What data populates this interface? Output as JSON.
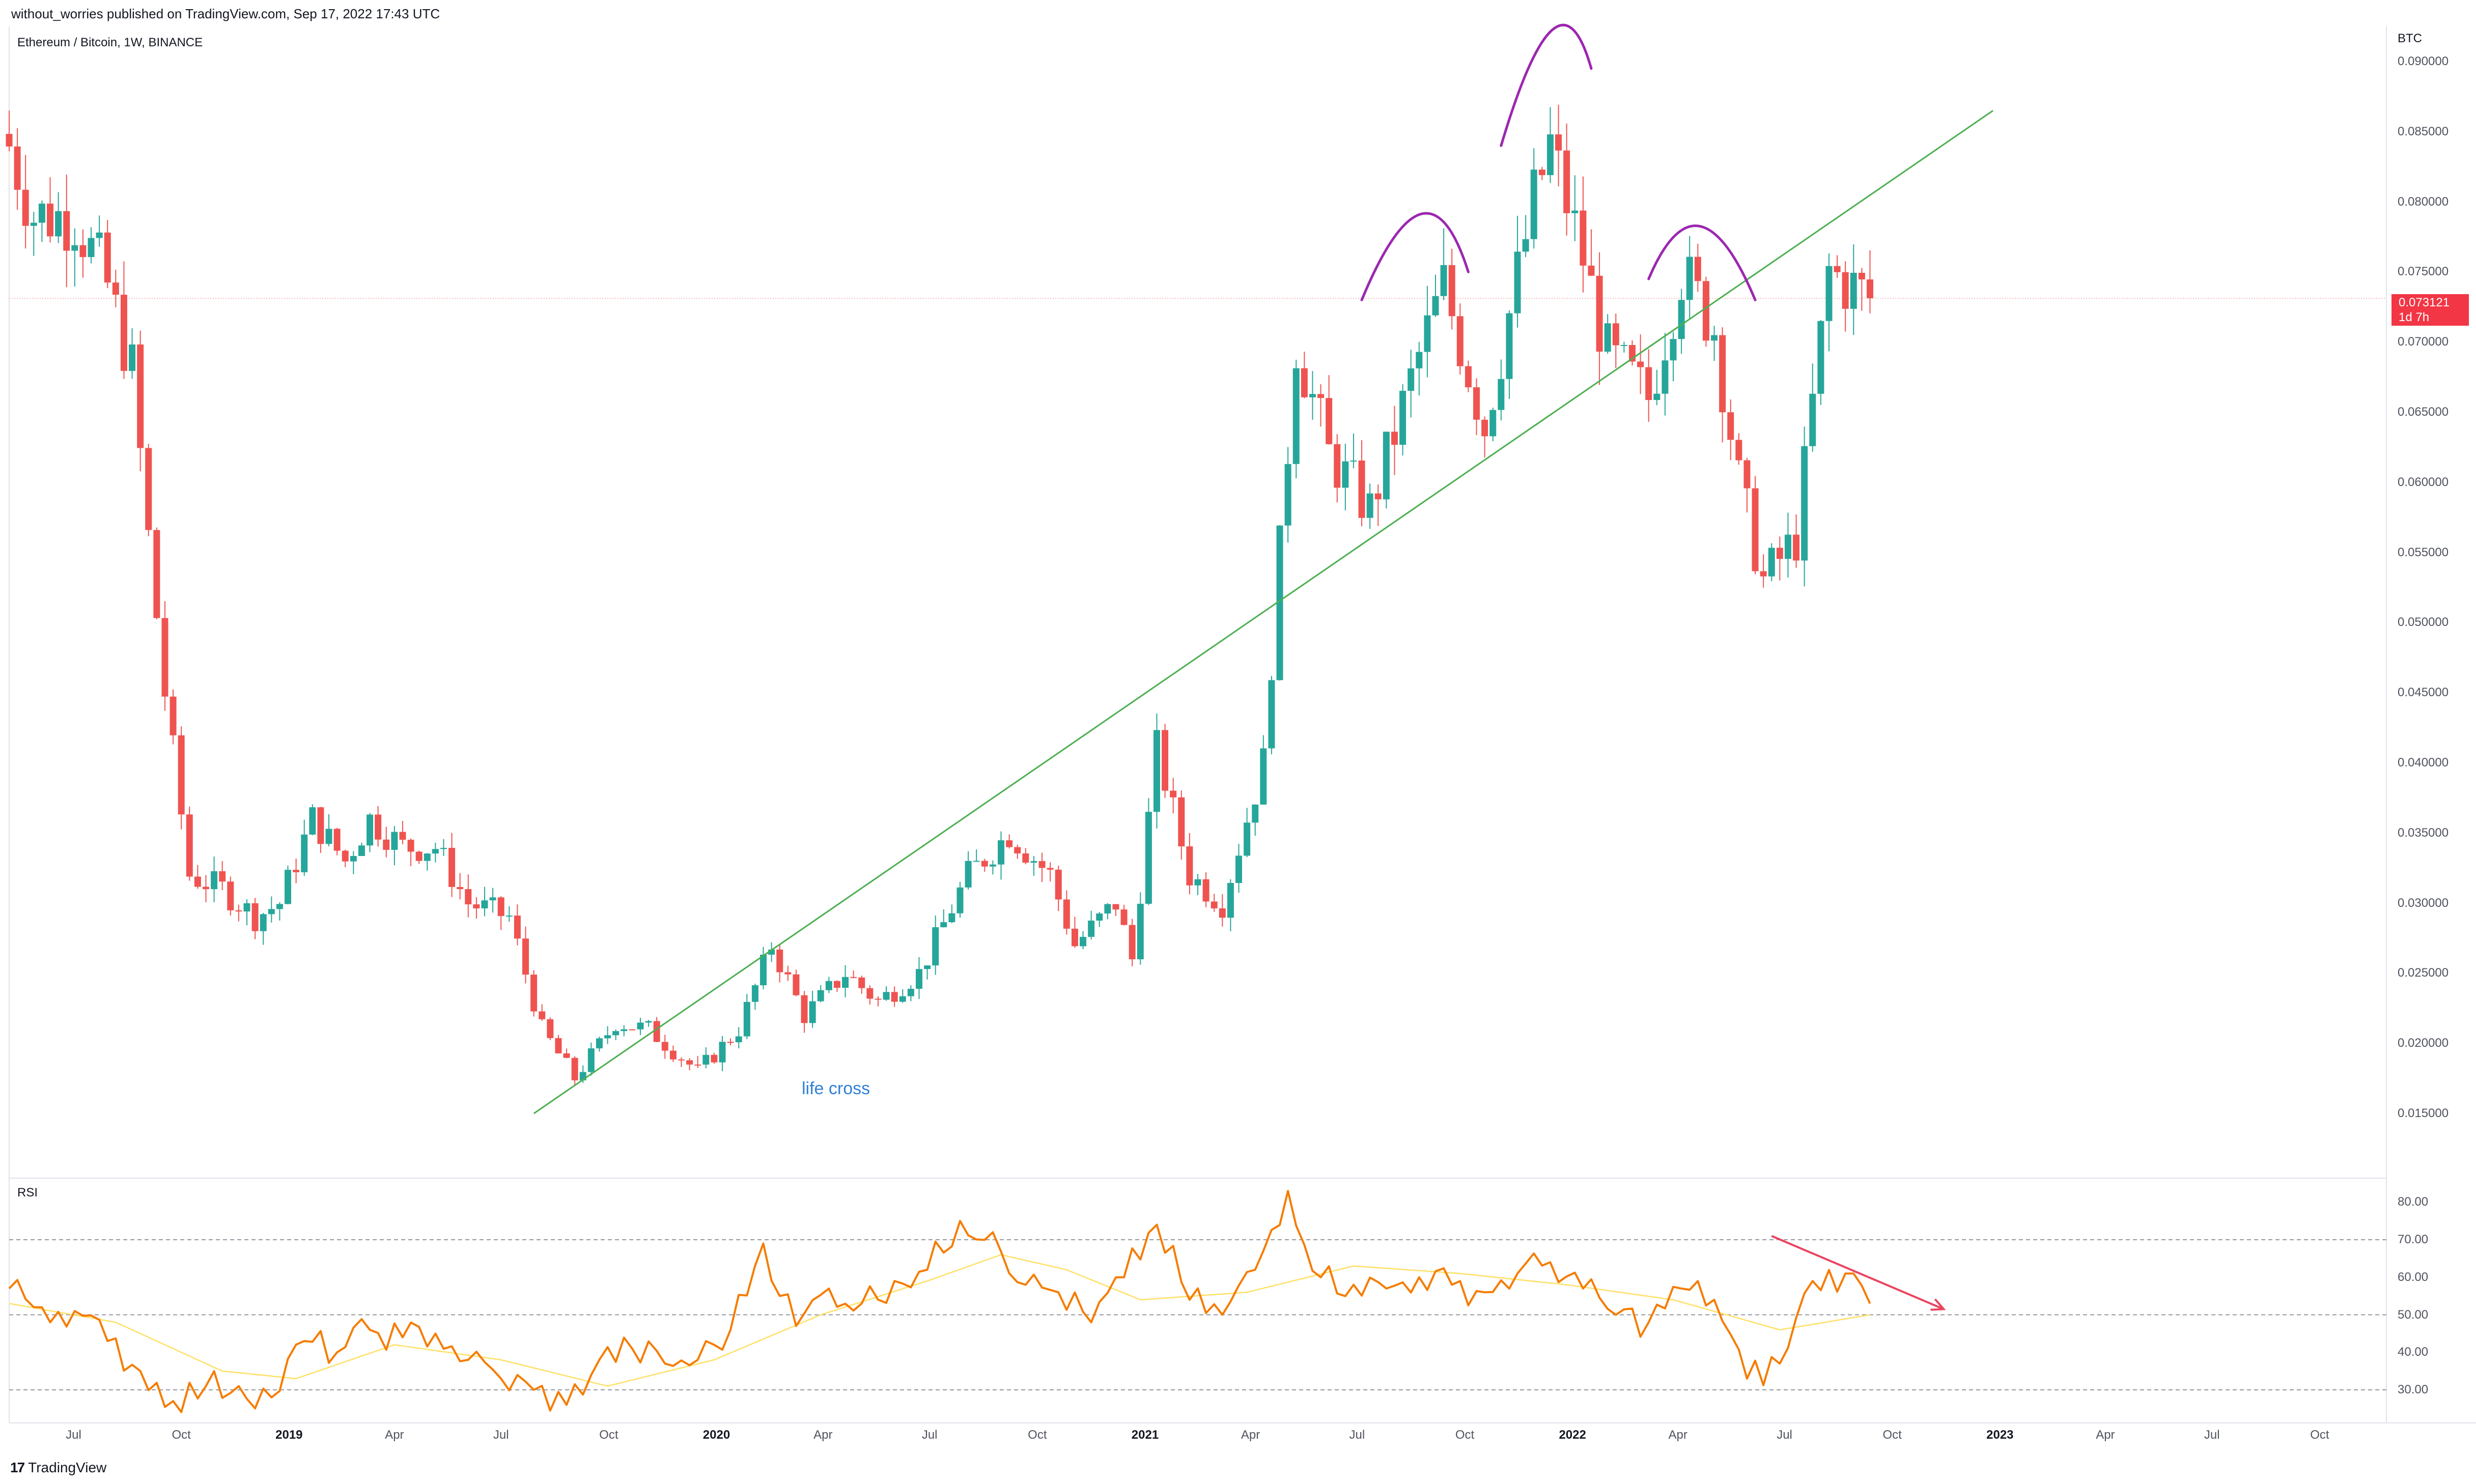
{
  "header": {
    "publisher": "without_worries published on TradingView.com, Sep 17, 2022 17:43 UTC",
    "title": "Ethereum / Bitcoin, 1W, BINANCE"
  },
  "price_axis": {
    "unit": "BTC",
    "ticks": [
      "0.090000",
      "0.085000",
      "0.080000",
      "0.075000",
      "0.070000",
      "0.065000",
      "0.060000",
      "0.055000",
      "0.050000",
      "0.045000",
      "0.040000",
      "0.035000",
      "0.030000",
      "0.025000",
      "0.020000",
      "0.015000"
    ]
  },
  "price_tag": {
    "value": "0.073121",
    "countdown": "1d 7h",
    "color": "#f23645"
  },
  "rsi_axis": {
    "ticks": [
      "80.00",
      "70.00",
      "60.00",
      "50.00",
      "40.00",
      "30.00"
    ]
  },
  "time_axis": {
    "ticks": [
      {
        "label": "Jul",
        "year": false
      },
      {
        "label": "Oct",
        "year": false
      },
      {
        "label": "2019",
        "year": true
      },
      {
        "label": "Apr",
        "year": false
      },
      {
        "label": "Jul",
        "year": false
      },
      {
        "label": "Oct",
        "year": false
      },
      {
        "label": "2020",
        "year": true
      },
      {
        "label": "Apr",
        "year": false
      },
      {
        "label": "Jul",
        "year": false
      },
      {
        "label": "Oct",
        "year": false
      },
      {
        "label": "2021",
        "year": true
      },
      {
        "label": "Apr",
        "year": false
      },
      {
        "label": "Jul",
        "year": false
      },
      {
        "label": "Oct",
        "year": false
      },
      {
        "label": "2022",
        "year": true
      },
      {
        "label": "Apr",
        "year": false
      },
      {
        "label": "Jul",
        "year": false
      },
      {
        "label": "Oct",
        "year": false
      },
      {
        "label": "2023",
        "year": true
      },
      {
        "label": "Apr",
        "year": false
      },
      {
        "label": "Jul",
        "year": false
      },
      {
        "label": "Oct",
        "year": false
      }
    ]
  },
  "annotation": {
    "text": "life cross"
  },
  "rsi_panel": {
    "label": "RSI"
  },
  "footer": {
    "logo": "17",
    "brand": "TradingView"
  },
  "colors": {
    "up": "#26a69a",
    "down": "#ef5350",
    "trend": "#4caf50",
    "rsi": "#f57c00",
    "rsi_ma": "#ffe066",
    "arcs": "#9c27b0",
    "arrow": "#e94560"
  },
  "chart_data": [
    {
      "type": "candlestick",
      "title": "Ethereum / Bitcoin, 1W, BINANCE",
      "ylabel": "BTC",
      "ylim": [
        0.0105,
        0.0925
      ],
      "x_range": [
        "2018-05-07",
        "2023-11-27"
      ],
      "x_ticks": [
        "2018-07-01",
        "2018-10-01",
        "2019-01-01",
        "2019-04-01",
        "2019-07-01",
        "2019-10-01",
        "2020-01-01",
        "2020-04-01",
        "2020-07-01",
        "2020-10-01",
        "2021-01-01",
        "2021-04-01",
        "2021-07-01",
        "2021-10-01",
        "2022-01-01",
        "2022-04-01",
        "2022-07-01",
        "2022-10-01",
        "2023-01-01",
        "2023-04-01",
        "2023-07-01",
        "2023-10-01"
      ],
      "anchors": [
        [
          "2018-05-07",
          0.084
        ],
        [
          "2018-05-28",
          0.079
        ],
        [
          "2018-07-02",
          0.079
        ],
        [
          "2018-07-30",
          0.074
        ],
        [
          "2018-08-20",
          0.068
        ],
        [
          "2018-09-03",
          0.056
        ],
        [
          "2018-09-17",
          0.045
        ],
        [
          "2018-10-08",
          0.032
        ],
        [
          "2018-11-05",
          0.031
        ],
        [
          "2018-12-03",
          0.029
        ],
        [
          "2018-12-24",
          0.03
        ],
        [
          "2019-01-21",
          0.036
        ],
        [
          "2019-02-18",
          0.033
        ],
        [
          "2019-03-11",
          0.036
        ],
        [
          "2019-04-08",
          0.034
        ],
        [
          "2019-05-06",
          0.034
        ],
        [
          "2019-06-03",
          0.03
        ],
        [
          "2019-07-08",
          0.029
        ],
        [
          "2019-08-05",
          0.021
        ],
        [
          "2019-09-02",
          0.0175
        ],
        [
          "2019-10-07",
          0.0215
        ],
        [
          "2019-11-04",
          0.021
        ],
        [
          "2019-12-16",
          0.018
        ],
        [
          "2020-01-20",
          0.021
        ],
        [
          "2020-02-17",
          0.027
        ],
        [
          "2020-03-16",
          0.022
        ],
        [
          "2020-04-20",
          0.025
        ],
        [
          "2020-05-18",
          0.023
        ],
        [
          "2020-06-22",
          0.025
        ],
        [
          "2020-08-03",
          0.032
        ],
        [
          "2020-09-07",
          0.035
        ],
        [
          "2020-10-12",
          0.032
        ],
        [
          "2020-11-02",
          0.027
        ],
        [
          "2020-12-07",
          0.03
        ],
        [
          "2020-12-21",
          0.026
        ],
        [
          "2021-01-11",
          0.041
        ],
        [
          "2021-02-08",
          0.032
        ],
        [
          "2021-03-08",
          0.03
        ],
        [
          "2021-04-12",
          0.04
        ],
        [
          "2021-05-10",
          0.07
        ],
        [
          "2021-06-07",
          0.062
        ],
        [
          "2021-07-12",
          0.058
        ],
        [
          "2021-08-23",
          0.069
        ],
        [
          "2021-09-13",
          0.074
        ],
        [
          "2021-10-18",
          0.064
        ],
        [
          "2021-11-29",
          0.08
        ],
        [
          "2021-12-13",
          0.084
        ],
        [
          "2022-01-10",
          0.076
        ],
        [
          "2022-01-31",
          0.069
        ],
        [
          "2022-03-07",
          0.066
        ],
        [
          "2022-04-04",
          0.075
        ],
        [
          "2022-05-02",
          0.071
        ],
        [
          "2022-05-23",
          0.06
        ],
        [
          "2022-06-13",
          0.053
        ],
        [
          "2022-07-11",
          0.056
        ],
        [
          "2022-08-08",
          0.075
        ],
        [
          "2022-09-12",
          0.0731
        ]
      ],
      "last": 0.073121
    },
    {
      "type": "line",
      "title": "RSI",
      "ylim": [
        22,
        86
      ],
      "reference_lines": [
        70,
        50,
        30
      ],
      "series": [
        {
          "name": "RSI",
          "points": [
            [
              "2018-05-07",
              57
            ],
            [
              "2018-06-04",
              52
            ],
            [
              "2018-07-02",
              51
            ],
            [
              "2018-07-30",
              43
            ],
            [
              "2018-08-27",
              35
            ],
            [
              "2018-09-24",
              27
            ],
            [
              "2018-10-22",
              31
            ],
            [
              "2018-11-19",
              31
            ],
            [
              "2018-12-17",
              28
            ],
            [
              "2019-01-14",
              43
            ],
            [
              "2019-02-11",
              40
            ],
            [
              "2019-03-11",
              46
            ],
            [
              "2019-04-08",
              44
            ],
            [
              "2019-05-06",
              45
            ],
            [
              "2019-06-03",
              38
            ],
            [
              "2019-07-01",
              33
            ],
            [
              "2019-07-29",
              30
            ],
            [
              "2019-08-26",
              26
            ],
            [
              "2019-09-23",
              38
            ],
            [
              "2019-10-21",
              41
            ],
            [
              "2019-11-18",
              37
            ],
            [
              "2019-12-16",
              38
            ],
            [
              "2020-01-13",
              46
            ],
            [
              "2020-02-10",
              69
            ],
            [
              "2020-03-09",
              47
            ],
            [
              "2020-04-06",
              57
            ],
            [
              "2020-05-04",
              53
            ],
            [
              "2020-06-01",
              59
            ],
            [
              "2020-06-29",
              62
            ],
            [
              "2020-07-27",
              75
            ],
            [
              "2020-08-24",
              72
            ],
            [
              "2020-09-21",
              58
            ],
            [
              "2020-10-19",
              56
            ],
            [
              "2020-11-16",
              48
            ],
            [
              "2020-12-14",
              60
            ],
            [
              "2021-01-11",
              74
            ],
            [
              "2021-02-08",
              54
            ],
            [
              "2021-03-08",
              50
            ],
            [
              "2021-04-05",
              62
            ],
            [
              "2021-05-03",
              83
            ],
            [
              "2021-05-31",
              60
            ],
            [
              "2021-06-28",
              58
            ],
            [
              "2021-07-26",
              57
            ],
            [
              "2021-08-23",
              60
            ],
            [
              "2021-09-20",
              58
            ],
            [
              "2021-10-18",
              56
            ],
            [
              "2021-11-15",
              61
            ],
            [
              "2021-12-13",
              64
            ],
            [
              "2022-01-10",
              57
            ],
            [
              "2022-02-07",
              50
            ],
            [
              "2022-03-07",
              48
            ],
            [
              "2022-04-04",
              57
            ],
            [
              "2022-05-02",
              54
            ],
            [
              "2022-05-30",
              33
            ],
            [
              "2022-06-27",
              37
            ],
            [
              "2022-07-25",
              59
            ],
            [
              "2022-08-22",
              61
            ],
            [
              "2022-09-12",
              53
            ]
          ]
        },
        {
          "name": "RSI-based MA",
          "points": [
            [
              "2018-05-07",
              53
            ],
            [
              "2018-08-06",
              48
            ],
            [
              "2018-11-05",
              35
            ],
            [
              "2019-01-07",
              33
            ],
            [
              "2019-04-01",
              42
            ],
            [
              "2019-07-01",
              38
            ],
            [
              "2019-09-30",
              31
            ],
            [
              "2019-12-30",
              38
            ],
            [
              "2020-03-30",
              50
            ],
            [
              "2020-06-29",
              59
            ],
            [
              "2020-08-31",
              66
            ],
            [
              "2020-10-26",
              62
            ],
            [
              "2020-12-28",
              54
            ],
            [
              "2021-03-29",
              56
            ],
            [
              "2021-06-28",
              63
            ],
            [
              "2021-09-27",
              61
            ],
            [
              "2021-12-27",
              58
            ],
            [
              "2022-03-28",
              54
            ],
            [
              "2022-06-27",
              46
            ],
            [
              "2022-09-12",
              50
            ]
          ]
        }
      ]
    }
  ]
}
